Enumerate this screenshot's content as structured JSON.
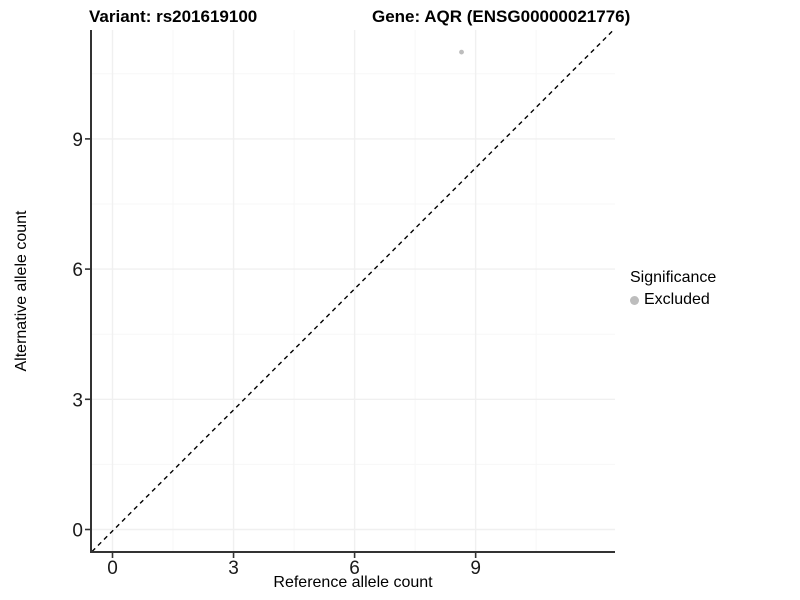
{
  "titles": {
    "left": "Variant: rs201619100",
    "right": "Gene: AQR (ENSG00000021776)"
  },
  "axes": {
    "x_label": "Reference allele count",
    "y_label": "Alternative allele count"
  },
  "legend": {
    "title": "Significance",
    "items": [
      {
        "label": "Excluded",
        "color": "#bdbdbd"
      }
    ]
  },
  "chart_data": {
    "type": "scatter",
    "title": "Variant: rs201619100   Gene: AQR (ENSG00000021776)",
    "xlabel": "Reference allele count",
    "ylabel": "Alternative allele count",
    "x_ticks": [
      0,
      3,
      6,
      9
    ],
    "y_ticks": [
      0,
      3,
      6,
      9
    ],
    "x_minor_ticks": [
      1.5,
      4.5,
      7.5,
      10.5
    ],
    "y_minor_ticks": [
      1.5,
      4.5,
      7.5,
      10.5
    ],
    "xlim": [
      -0.5,
      12.45
    ],
    "ylim": [
      -0.52,
      11.52
    ],
    "grid": true,
    "legend_position": "right",
    "series": [
      {
        "name": "Excluded",
        "color": "#bdbdbd",
        "points": [
          {
            "x": 8.65,
            "y": 11.0
          }
        ]
      }
    ],
    "reference_line": {
      "slope": 1,
      "intercept": 0,
      "style": "dashed",
      "color": "#000000"
    },
    "style": {
      "major_grid_color": "#f0f0f0",
      "minor_grid_color": "#f7f7f7",
      "axis_line_color": "#333333",
      "tick_color": "#333333",
      "tick_label_color": "#1a1a1a"
    }
  }
}
